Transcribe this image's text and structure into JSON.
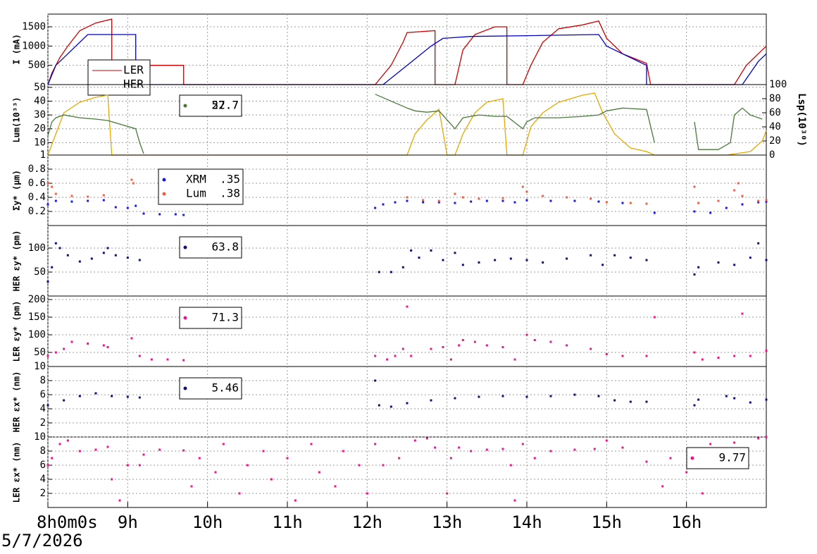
{
  "x_axis": {
    "xlim": [
      8,
      17
    ],
    "xticks": [
      {
        "value": 8,
        "label": "8h0m0s"
      },
      {
        "value": 9,
        "label": "9h"
      },
      {
        "value": 10,
        "label": "10h"
      },
      {
        "value": 11,
        "label": "11h"
      },
      {
        "value": 12,
        "label": "12h"
      },
      {
        "value": 13,
        "label": "13h"
      },
      {
        "value": 14,
        "label": "14h"
      },
      {
        "value": 15,
        "label": "15h"
      },
      {
        "value": 16,
        "label": "16h"
      }
    ],
    "date": "5/7/2026"
  },
  "chart_data": [
    {
      "type": "line",
      "ylabel": "I (mA)",
      "ylim": [
        0,
        1830
      ],
      "yticks": [
        500,
        1000,
        1500
      ],
      "grid": true,
      "series": [
        {
          "name": "LER",
          "color": "#cc0000",
          "x": [
            8.0,
            8.05,
            8.15,
            8.25,
            8.4,
            8.6,
            8.8,
            8.8,
            9.7,
            9.7,
            12.1,
            12.3,
            12.45,
            12.5,
            12.85,
            12.85,
            13.1,
            13.2,
            13.35,
            13.6,
            13.75,
            13.75,
            13.95,
            14.05,
            14.2,
            14.4,
            14.7,
            14.9,
            15.0,
            15.2,
            15.5,
            15.55,
            16.6,
            16.75,
            16.95,
            17.0
          ],
          "values": [
            0,
            300,
            700,
            1000,
            1400,
            1600,
            1700,
            500,
            500,
            0,
            0,
            500,
            1100,
            1350,
            1400,
            0,
            0,
            900,
            1300,
            1500,
            1500,
            0,
            0,
            500,
            1100,
            1450,
            1550,
            1650,
            1200,
            800,
            550,
            0,
            0,
            500,
            900,
            1000
          ]
        },
        {
          "name": "HER",
          "color": "#0000cc",
          "x": [
            8.0,
            8.1,
            8.3,
            8.5,
            9.1,
            9.1,
            12.2,
            12.5,
            12.8,
            12.95,
            13.3,
            14.0,
            14.9,
            15.0,
            15.5,
            15.5,
            16.7,
            16.9,
            17.0
          ],
          "values": [
            0,
            500,
            900,
            1300,
            1300,
            0,
            0,
            500,
            1000,
            1200,
            1250,
            1270,
            1300,
            1000,
            500,
            0,
            0,
            600,
            800
          ]
        }
      ]
    },
    {
      "type": "line",
      "ylabel": "Lum(10³³)",
      "y2label": "Lsp(10³⁰)",
      "ylim": [
        1,
        52
      ],
      "yticks": [
        1,
        10,
        20,
        30,
        40,
        50
      ],
      "y2lim": [
        0,
        100
      ],
      "y2ticks": [
        0,
        20,
        40,
        60,
        80,
        100
      ],
      "grid": true,
      "series": [
        {
          "name": "52.7",
          "color": "#e6a800",
          "axis": "y2",
          "x": [
            8.0,
            8.1,
            8.2,
            8.4,
            8.6,
            8.75,
            8.8,
            12.5,
            12.6,
            12.75,
            12.9,
            13.0,
            13.1,
            13.2,
            13.35,
            13.5,
            13.7,
            13.75,
            13.95,
            14.05,
            14.2,
            14.4,
            14.7,
            14.85,
            14.95,
            15.1,
            15.3,
            15.5,
            15.6,
            16.5,
            16.8,
            16.95,
            17.0
          ],
          "values": [
            0,
            30,
            60,
            75,
            82,
            85,
            0,
            0,
            30,
            50,
            65,
            0,
            0,
            30,
            60,
            75,
            80,
            0,
            0,
            40,
            60,
            75,
            85,
            88,
            60,
            30,
            10,
            5,
            0,
            0,
            5,
            20,
            35
          ]
        },
        {
          "name": "27.7",
          "color": "#4a7a3a",
          "x": [
            8.0,
            8.05,
            8.1,
            8.2,
            8.4,
            8.6,
            8.75,
            9.1,
            9.15,
            9.2,
            null,
            12.1,
            12.5,
            12.6,
            12.75,
            12.9,
            13.1,
            13.2,
            13.4,
            13.6,
            13.75,
            13.95,
            14.0,
            14.1,
            14.4,
            14.7,
            14.9,
            15.0,
            15.2,
            15.5,
            15.6,
            null,
            16.1,
            16.15,
            16.4,
            16.55,
            16.6,
            16.7,
            16.8,
            16.95
          ],
          "values": [
            15,
            25,
            28,
            30,
            28,
            27,
            26,
            20,
            10,
            2,
            null,
            45,
            35,
            33,
            32,
            33,
            20,
            28,
            30,
            29,
            29,
            20,
            25,
            28,
            28,
            29,
            30,
            33,
            35,
            34,
            10,
            null,
            25,
            5,
            5,
            10,
            30,
            35,
            30,
            27
          ]
        }
      ]
    },
    {
      "type": "scatter",
      "ylabel": "Σy* (μm)",
      "ylim": [
        0,
        1
      ],
      "yticks": [
        0.2,
        0.4,
        0.6,
        0.8
      ],
      "grid": true,
      "series": [
        {
          "name": "XRM  .35",
          "color": "#1a1aee",
          "x": [
            8.0,
            8.1,
            8.3,
            8.5,
            8.7,
            8.85,
            9.0,
            9.1,
            9.2,
            9.4,
            9.6,
            9.7,
            12.1,
            12.2,
            12.35,
            12.5,
            12.7,
            12.9,
            13.1,
            13.3,
            13.5,
            13.7,
            13.85,
            14.0,
            14.3,
            14.6,
            14.9,
            15.2,
            15.5,
            15.6,
            16.1,
            16.3,
            16.5,
            16.7,
            16.9,
            17.0
          ],
          "values": [
            0.3,
            0.35,
            0.34,
            0.35,
            0.36,
            0.26,
            0.25,
            0.28,
            0.17,
            0.16,
            0.16,
            0.15,
            0.25,
            0.3,
            0.33,
            0.35,
            0.33,
            0.33,
            0.32,
            0.34,
            0.35,
            0.35,
            0.33,
            0.36,
            0.35,
            0.35,
            0.34,
            0.32,
            0.31,
            0.18,
            0.2,
            0.18,
            0.25,
            0.3,
            0.33,
            0.34
          ]
        },
        {
          "name": "Lum  .38",
          "color": "#f06040",
          "x": [
            8.0,
            8.05,
            8.1,
            8.3,
            8.5,
            8.7,
            9.05,
            9.07,
            12.5,
            12.7,
            12.9,
            13.1,
            13.2,
            13.4,
            13.7,
            13.95,
            14.0,
            14.2,
            14.5,
            14.8,
            15.0,
            15.3,
            15.5,
            16.1,
            16.15,
            16.4,
            16.6,
            16.65,
            16.7,
            16.9,
            17.0
          ],
          "values": [
            0.6,
            0.55,
            0.45,
            0.42,
            0.41,
            0.43,
            0.65,
            0.6,
            0.4,
            0.36,
            0.35,
            0.45,
            0.4,
            0.38,
            0.39,
            0.55,
            0.48,
            0.42,
            0.4,
            0.38,
            0.33,
            0.32,
            0.31,
            0.55,
            0.32,
            0.35,
            0.5,
            0.6,
            0.42,
            0.35,
            0.36
          ]
        }
      ]
    },
    {
      "type": "scatter",
      "ylabel": "HER εy* (pm)",
      "ylim": [
        0,
        147
      ],
      "yticks": [
        50,
        100
      ],
      "grid": true,
      "series": [
        {
          "name": "63.8",
          "color": "#10107a",
          "x": [
            8.0,
            8.05,
            8.1,
            8.15,
            8.25,
            8.4,
            8.55,
            8.7,
            8.75,
            8.85,
            9.0,
            9.15,
            12.15,
            12.3,
            12.45,
            12.55,
            12.65,
            12.8,
            12.95,
            13.1,
            13.2,
            13.4,
            13.6,
            13.8,
            14.0,
            14.2,
            14.5,
            14.8,
            14.95,
            15.1,
            15.3,
            15.5,
            16.1,
            16.15,
            16.4,
            16.6,
            16.8,
            16.9,
            17.0
          ],
          "values": [
            30,
            60,
            110,
            100,
            85,
            72,
            78,
            90,
            100,
            85,
            80,
            75,
            50,
            50,
            60,
            95,
            80,
            95,
            75,
            90,
            65,
            70,
            75,
            78,
            75,
            70,
            78,
            85,
            65,
            85,
            80,
            75,
            45,
            60,
            70,
            65,
            80,
            110,
            75
          ]
        }
      ]
    },
    {
      "type": "scatter",
      "ylabel": "LER εy* (pm)",
      "ylim": [
        10,
        210
      ],
      "yticks": [
        10,
        50,
        100,
        150,
        200
      ],
      "grid": true,
      "series": [
        {
          "name": "71.3",
          "color": "#f0148c",
          "x": [
            8.0,
            8.1,
            8.2,
            8.3,
            8.5,
            8.7,
            8.75,
            9.05,
            9.15,
            9.3,
            9.5,
            9.7,
            12.1,
            12.25,
            12.35,
            12.45,
            12.5,
            12.55,
            12.8,
            12.95,
            13.05,
            13.15,
            13.2,
            13.35,
            13.5,
            13.7,
            13.85,
            14.0,
            14.1,
            14.3,
            14.5,
            14.8,
            15.0,
            15.2,
            15.5,
            15.6,
            16.1,
            16.2,
            16.4,
            16.6,
            16.7,
            16.8,
            17.0
          ],
          "values": [
            40,
            50,
            60,
            80,
            75,
            70,
            65,
            90,
            40,
            30,
            30,
            28,
            40,
            30,
            40,
            60,
            180,
            40,
            60,
            65,
            30,
            70,
            85,
            80,
            70,
            65,
            30,
            100,
            85,
            80,
            70,
            60,
            45,
            40,
            40,
            150,
            50,
            30,
            35,
            40,
            160,
            40,
            55
          ]
        }
      ]
    },
    {
      "type": "scatter",
      "ylabel": "HER εx* (nm)",
      "ylim": [
        0,
        10
      ],
      "yticks": [
        2,
        4,
        6,
        8
      ],
      "grid": true,
      "series": [
        {
          "name": "5.46",
          "color": "#10107a",
          "x": [
            8.0,
            8.2,
            8.4,
            8.6,
            8.8,
            9.0,
            9.15,
            12.1,
            12.15,
            12.3,
            12.5,
            12.8,
            13.1,
            13.4,
            13.7,
            14.0,
            14.3,
            14.6,
            14.9,
            15.1,
            15.3,
            15.5,
            16.1,
            16.15,
            16.5,
            16.6,
            16.8,
            17.0
          ],
          "values": [
            4.5,
            5.2,
            5.8,
            6.2,
            5.8,
            5.7,
            5.6,
            8,
            4.5,
            4.3,
            4.8,
            5.2,
            5.5,
            5.7,
            5.8,
            5.7,
            5.8,
            6,
            5.8,
            5.2,
            5,
            5,
            4.5,
            5.3,
            5.8,
            5.5,
            4.9,
            5.3
          ]
        }
      ]
    },
    {
      "type": "scatter",
      "ylabel": "LER εx* (nm)",
      "ylim": [
        0,
        10
      ],
      "yticks": [
        2,
        4,
        6,
        8,
        10
      ],
      "grid": true,
      "series": [
        {
          "name": "9.77",
          "color": "#f0148c",
          "x": [
            8.0,
            8.05,
            8.15,
            8.25,
            8.4,
            8.6,
            8.75,
            9.15,
            9.2,
            9.4,
            9.7,
            12.2,
            12.4,
            12.6,
            12.75,
            12.85,
            13.05,
            13.15,
            13.3,
            13.5,
            13.7,
            13.8,
            13.95,
            14.1,
            14.3,
            14.6,
            14.85,
            15.0,
            15.2,
            15.5,
            16.1,
            16.3,
            16.6,
            16.9,
            17.0,
            9.8,
            9.9,
            10.1,
            10.2,
            10.4,
            10.5,
            10.7,
            10.8,
            11.0,
            11.1,
            11.3,
            11.4,
            11.6,
            11.7,
            11.9,
            12.0,
            12.1,
            8.8,
            8.9,
            9.0,
            13.0,
            13.85,
            15.7,
            15.8,
            16.0,
            16.2,
            16.4
          ],
          "values": [
            6,
            7,
            9,
            9.5,
            8,
            8.2,
            8.6,
            6,
            7.5,
            8.2,
            8.1,
            6,
            7,
            9.5,
            9.8,
            8.5,
            7,
            8.5,
            8,
            8.2,
            8.3,
            6,
            9,
            7,
            8,
            8.2,
            8.3,
            9.5,
            8.5,
            6.5,
            7,
            9,
            9.2,
            9.8,
            10,
            3,
            7,
            5,
            9,
            2,
            6,
            8,
            4,
            7,
            1,
            9,
            5,
            3,
            8,
            6,
            2,
            9,
            4,
            1,
            6,
            2,
            1,
            3,
            7,
            5,
            2,
            6
          ]
        }
      ]
    }
  ]
}
